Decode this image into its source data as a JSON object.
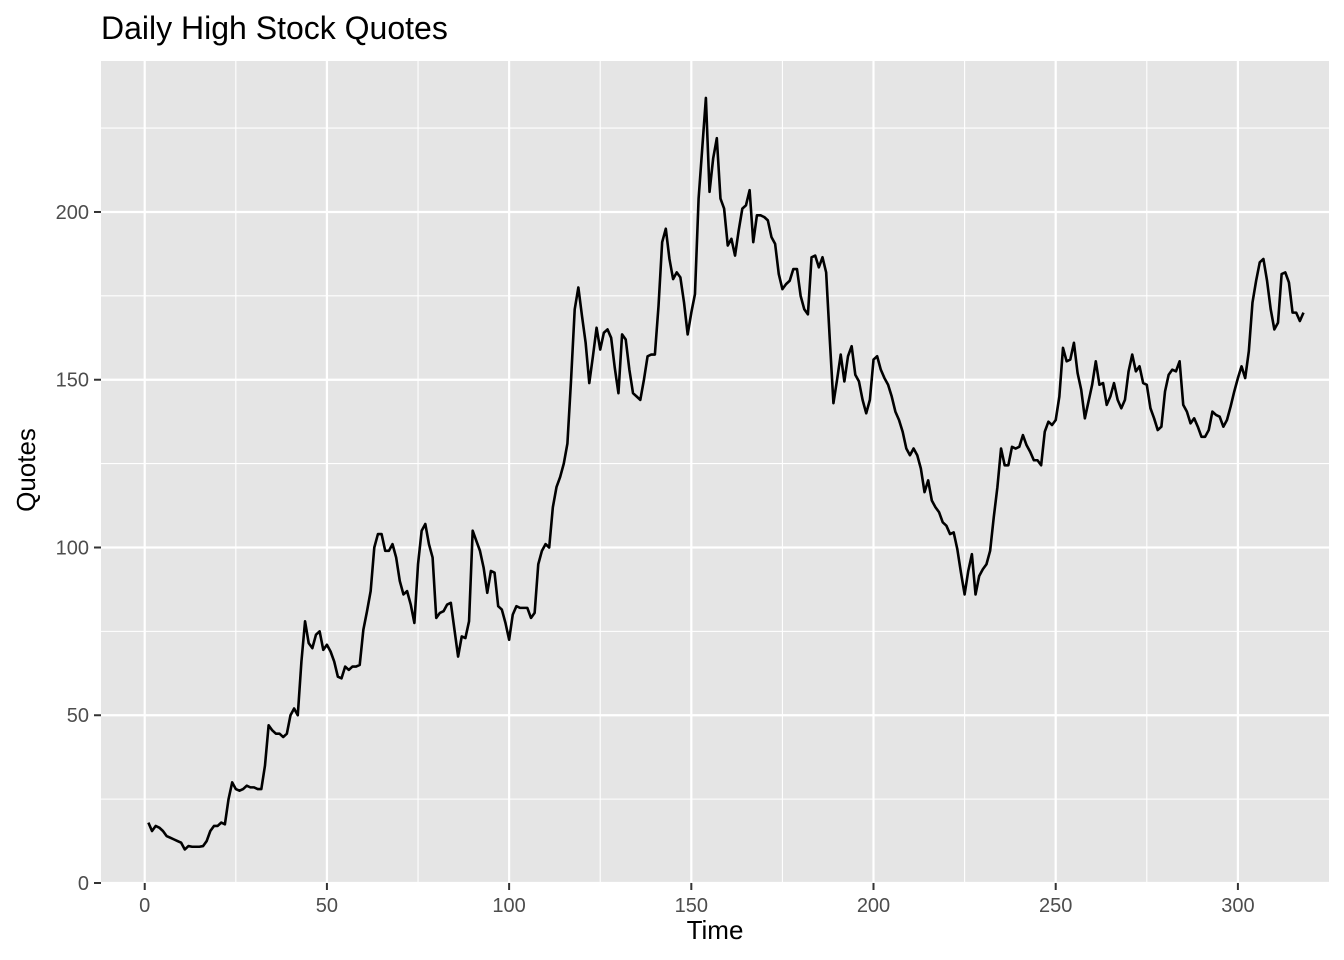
{
  "chart_data": {
    "type": "line",
    "title": "Daily High Stock Quotes",
    "xlabel": "Time",
    "ylabel": "Quotes",
    "xlim": [
      -12,
      325
    ],
    "ylim": [
      0,
      245
    ],
    "x_ticks": [
      0,
      50,
      100,
      150,
      200,
      250,
      300
    ],
    "y_ticks": [
      0,
      50,
      100,
      150,
      200
    ],
    "grid": true,
    "legend": "none",
    "colors": {
      "panel": "#e5e5e5",
      "grid": "#ffffff",
      "line": "#000000",
      "tick_text": "#4d4d4d",
      "tick_mark": "#333333"
    },
    "series": [
      {
        "x": [
          1,
          2,
          3,
          4,
          5,
          6,
          7,
          8,
          9,
          10,
          11,
          12,
          13,
          14,
          15,
          16,
          17,
          18,
          19,
          20,
          21,
          22,
          23,
          24,
          25,
          26,
          27,
          28,
          29,
          30,
          31,
          32,
          33,
          34,
          35,
          36,
          37,
          38,
          39,
          40,
          41,
          42,
          43,
          44,
          45,
          46,
          47,
          48,
          49,
          50,
          51,
          52,
          53,
          54,
          55,
          56,
          57,
          58,
          59,
          60,
          61,
          62,
          63,
          64,
          65,
          66,
          67,
          68,
          69,
          70,
          71,
          72,
          73,
          74,
          75,
          76,
          77,
          78,
          79,
          80,
          81,
          82,
          83,
          84,
          85,
          86,
          87,
          88,
          89,
          90,
          91,
          92,
          93,
          94,
          95,
          96,
          97,
          98,
          99,
          100,
          101,
          102,
          103,
          104,
          105,
          106,
          107,
          108,
          109,
          110,
          111,
          112,
          113,
          114,
          115,
          116,
          117,
          118,
          119,
          120,
          121,
          122,
          123,
          124,
          125,
          126,
          127,
          128,
          129,
          130,
          131,
          132,
          133,
          134,
          135,
          136,
          137,
          138,
          139,
          140,
          141,
          142,
          143,
          144,
          145,
          146,
          147,
          148,
          149,
          150,
          151,
          152,
          153,
          154,
          155,
          156,
          157,
          158,
          159,
          160,
          161,
          162,
          163,
          164,
          165,
          166,
          167,
          168,
          169,
          170,
          171,
          172,
          173,
          174,
          175,
          176,
          177,
          178,
          179,
          180,
          181,
          182,
          183,
          184,
          185,
          186,
          187,
          188,
          189,
          190,
          191,
          192,
          193,
          194,
          195,
          196,
          197,
          198,
          199,
          200,
          201,
          202,
          203,
          204,
          205,
          206,
          207,
          208,
          209,
          210,
          211,
          212,
          213,
          214,
          215,
          216,
          217,
          218,
          219,
          220,
          221,
          222,
          223,
          224,
          225,
          226,
          227,
          228,
          229,
          230,
          231,
          232,
          233,
          234,
          235,
          236,
          237,
          238,
          239,
          240,
          241,
          242,
          243,
          244,
          245,
          246,
          247,
          248,
          249,
          250,
          251,
          252,
          253,
          254,
          255,
          256,
          257,
          258,
          259,
          260,
          261,
          262,
          263,
          264,
          265,
          266,
          267,
          268,
          269,
          270,
          271,
          272,
          273,
          274,
          275,
          276,
          277,
          278,
          279,
          280,
          281,
          282,
          283,
          284,
          285,
          286,
          287,
          288,
          289,
          290,
          291,
          292,
          293,
          294,
          295,
          296,
          297,
          298,
          299,
          300,
          301,
          302,
          303,
          304,
          305,
          306,
          307,
          308,
          309,
          310,
          311,
          312,
          313,
          314,
          315,
          316,
          317,
          318
        ],
        "y": [
          18,
          15.5,
          17,
          16.5,
          15.5,
          14,
          13.5,
          13,
          12.5,
          12,
          10,
          11,
          10.8,
          10.8,
          10.8,
          11,
          12.5,
          15.5,
          17,
          17,
          18,
          17.5,
          25,
          30,
          28,
          27.5,
          28,
          29,
          28.5,
          28.5,
          28,
          28,
          35,
          47,
          45.5,
          44.5,
          44.5,
          43.5,
          44.5,
          50,
          52,
          50,
          66,
          78,
          71.5,
          70,
          74,
          75,
          69.5,
          71,
          69,
          66,
          61.5,
          61,
          64.5,
          63.5,
          64.5,
          64.5,
          65,
          75.5,
          81,
          87,
          100,
          104,
          104,
          99,
          99,
          101,
          97,
          90,
          86,
          87,
          83,
          77.5,
          95,
          105,
          107,
          101,
          97,
          79,
          80.5,
          81,
          83,
          83.5,
          75.5,
          67.5,
          73.5,
          73,
          78,
          105,
          102,
          99,
          94,
          86.5,
          93,
          92.5,
          82.5,
          81.5,
          77.5,
          72.5,
          80,
          82.5,
          82,
          82,
          82,
          79,
          80.5,
          95,
          99,
          101,
          100,
          112,
          118,
          121,
          125,
          131,
          150,
          171,
          177.5,
          169,
          161,
          149,
          157,
          165.5,
          159,
          164,
          165,
          162.5,
          153.5,
          146,
          163.5,
          162,
          153,
          146,
          145,
          144,
          150,
          157,
          157.5,
          157.5,
          172,
          191,
          195,
          186,
          180,
          182,
          180.5,
          173,
          163.5,
          170,
          175.5,
          204,
          219,
          234,
          206,
          216,
          222,
          204,
          201,
          190,
          192,
          187,
          194.5,
          201,
          202,
          206.5,
          191,
          199,
          199,
          198.5,
          197.5,
          192.5,
          190.5,
          181.5,
          177,
          178.5,
          179.5,
          183,
          183,
          175,
          171,
          169.5,
          186.5,
          187,
          183.5,
          186.5,
          182,
          162,
          143,
          150,
          157.5,
          149.5,
          157,
          160,
          151.5,
          149.5,
          144,
          140,
          144,
          156,
          157,
          153,
          150.5,
          148.5,
          145,
          140.5,
          138,
          134.5,
          129.5,
          127.5,
          129.5,
          127.5,
          123.5,
          116.5,
          120,
          114,
          112,
          110.5,
          107.5,
          106.5,
          104,
          104.5,
          99.5,
          92.5,
          86,
          93,
          98,
          86,
          91.5,
          93.5,
          95,
          99,
          109,
          118,
          129.5,
          124.5,
          124.5,
          130,
          129.5,
          130,
          133.5,
          130.5,
          128.5,
          126,
          126,
          124.5,
          134.5,
          137.5,
          136.5,
          138,
          145,
          159.5,
          155.5,
          156,
          161,
          152,
          147,
          138.5,
          143.5,
          148.5,
          155.5,
          148.5,
          149,
          142.5,
          145,
          149,
          144,
          141.5,
          144,
          152.5,
          157.5,
          152.5,
          154,
          149,
          148.5,
          141.5,
          138.5,
          135,
          136,
          146.5,
          151.5,
          153,
          152.5,
          155.5,
          142.5,
          140.5,
          137,
          138.5,
          136,
          133,
          133,
          135,
          140.5,
          139.5,
          139,
          136,
          138,
          142,
          146.5,
          150.5,
          154,
          150.5,
          158.5,
          173,
          179.5,
          185,
          186,
          179.5,
          171,
          165,
          167,
          181.5,
          182,
          179,
          170,
          170,
          167.5,
          170
        ]
      }
    ]
  }
}
